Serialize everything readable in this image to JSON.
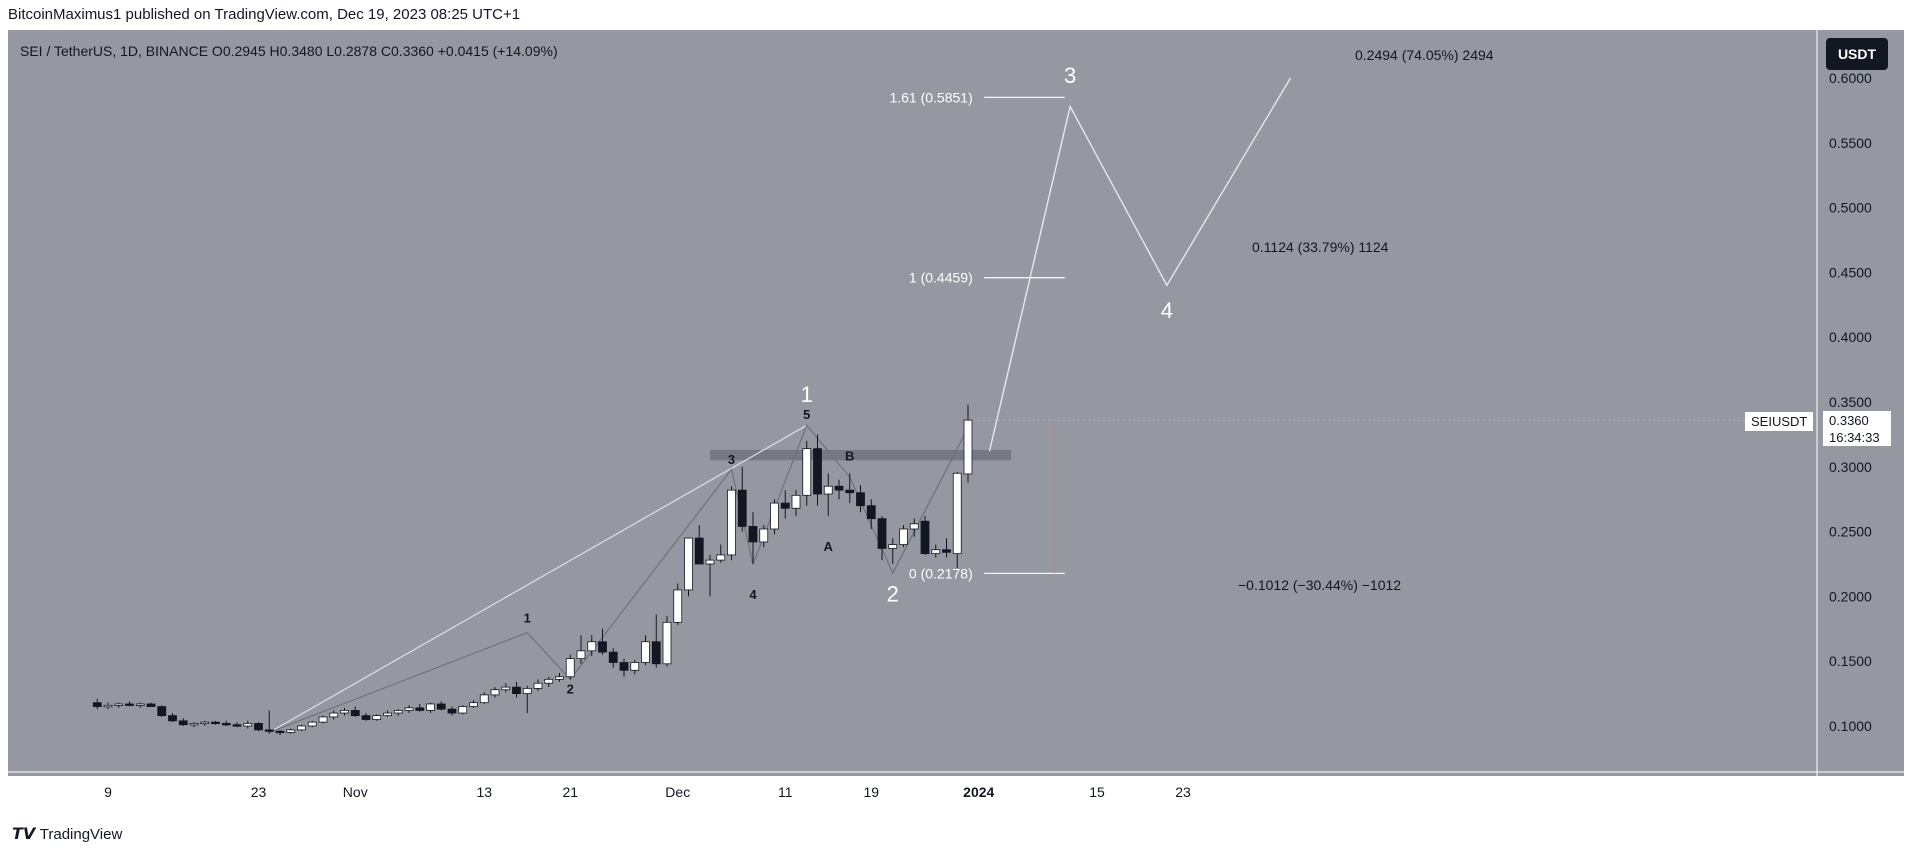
{
  "publisher": "BitcoinMaximus1 published on TradingView.com, Dec 19, 2023 08:25 UTC+1",
  "symbol": {
    "name": "SEI / TetherUS, 1D, BINANCE",
    "o_label": "O",
    "o": "0.2945",
    "h_label": "H",
    "h": "0.3480",
    "l_label": "L",
    "l": "0.2878",
    "c_label": "C",
    "c": "0.3360",
    "change": "+0.0415 (+14.09%)"
  },
  "currency_button": "USDT",
  "last_price_tag": {
    "symbol": "SEIUSDT",
    "price": "0.3360",
    "timer": "16:34:33"
  },
  "footer_brand": "TradingView",
  "colors": {
    "background": "#9598a1",
    "up": "#ffffff",
    "down": "#131722",
    "projection": "#e8e8e8",
    "zone": "#6c6f78"
  },
  "chart_data": {
    "type": "candlestick",
    "y_axis": {
      "range": [
        0.05,
        0.63
      ],
      "ticks": [
        "0.6000",
        "0.5500",
        "0.5000",
        "0.4500",
        "0.4000",
        "0.3500",
        "0.3000",
        "0.2500",
        "0.2000",
        "0.1500",
        "0.1000"
      ],
      "tick_values": [
        0.6,
        0.55,
        0.5,
        0.45,
        0.4,
        0.35,
        0.3,
        0.25,
        0.2,
        0.15,
        0.1
      ]
    },
    "x_axis": {
      "labels": [
        "9",
        "23",
        "Nov",
        "13",
        "21",
        "Dec",
        "11",
        "19",
        "2024",
        "15",
        "23"
      ],
      "label_day_index": [
        0,
        14,
        23,
        35,
        43,
        53,
        63,
        71,
        81,
        92,
        100
      ]
    },
    "candles": [
      [
        -1,
        0.118,
        0.121,
        0.113,
        0.115
      ],
      [
        0,
        0.115,
        0.118,
        0.113,
        0.116
      ],
      [
        1,
        0.116,
        0.118,
        0.114,
        0.117
      ],
      [
        2,
        0.117,
        0.119,
        0.115,
        0.116
      ],
      [
        3,
        0.116,
        0.118,
        0.114,
        0.117
      ],
      [
        4,
        0.117,
        0.118,
        0.115,
        0.115
      ],
      [
        5,
        0.115,
        0.116,
        0.107,
        0.108
      ],
      [
        6,
        0.108,
        0.11,
        0.103,
        0.104
      ],
      [
        7,
        0.104,
        0.106,
        0.1,
        0.101
      ],
      [
        8,
        0.101,
        0.103,
        0.099,
        0.102
      ],
      [
        9,
        0.102,
        0.104,
        0.1,
        0.103
      ],
      [
        10,
        0.103,
        0.104,
        0.101,
        0.102
      ],
      [
        11,
        0.102,
        0.104,
        0.1,
        0.101
      ],
      [
        12,
        0.101,
        0.103,
        0.099,
        0.1
      ],
      [
        13,
        0.1,
        0.104,
        0.098,
        0.102
      ],
      [
        14,
        0.102,
        0.103,
        0.096,
        0.097
      ],
      [
        15,
        0.097,
        0.112,
        0.094,
        0.096
      ],
      [
        16,
        0.096,
        0.097,
        0.093,
        0.095
      ],
      [
        17,
        0.095,
        0.098,
        0.094,
        0.097
      ],
      [
        18,
        0.097,
        0.101,
        0.096,
        0.1
      ],
      [
        19,
        0.1,
        0.104,
        0.099,
        0.103
      ],
      [
        20,
        0.103,
        0.108,
        0.102,
        0.107
      ],
      [
        21,
        0.107,
        0.112,
        0.105,
        0.11
      ],
      [
        22,
        0.11,
        0.114,
        0.108,
        0.112
      ],
      [
        23,
        0.112,
        0.115,
        0.107,
        0.108
      ],
      [
        24,
        0.108,
        0.11,
        0.104,
        0.105
      ],
      [
        25,
        0.105,
        0.109,
        0.104,
        0.108
      ],
      [
        26,
        0.108,
        0.112,
        0.107,
        0.11
      ],
      [
        27,
        0.11,
        0.113,
        0.108,
        0.112
      ],
      [
        28,
        0.112,
        0.116,
        0.11,
        0.114
      ],
      [
        29,
        0.114,
        0.117,
        0.111,
        0.112
      ],
      [
        30,
        0.112,
        0.118,
        0.11,
        0.117
      ],
      [
        31,
        0.117,
        0.119,
        0.112,
        0.113
      ],
      [
        32,
        0.113,
        0.115,
        0.108,
        0.11
      ],
      [
        33,
        0.11,
        0.116,
        0.109,
        0.115
      ],
      [
        34,
        0.115,
        0.12,
        0.114,
        0.118
      ]
    ],
    "candles_b": [
      [
        35,
        0.118,
        0.126,
        0.117,
        0.124
      ],
      [
        36,
        0.124,
        0.13,
        0.122,
        0.128
      ],
      [
        37,
        0.128,
        0.133,
        0.126,
        0.13
      ],
      [
        38,
        0.13,
        0.134,
        0.122,
        0.125
      ],
      [
        39,
        0.125,
        0.131,
        0.11,
        0.129
      ],
      [
        40,
        0.129,
        0.136,
        0.127,
        0.133
      ],
      [
        41,
        0.133,
        0.138,
        0.13,
        0.136
      ],
      [
        42,
        0.136,
        0.141,
        0.134,
        0.138
      ],
      [
        43,
        0.138,
        0.155,
        0.136,
        0.152
      ],
      [
        44,
        0.152,
        0.17,
        0.148,
        0.158
      ],
      [
        45,
        0.158,
        0.17,
        0.154,
        0.165
      ],
      [
        46,
        0.165,
        0.175,
        0.155,
        0.157
      ],
      [
        47,
        0.157,
        0.16,
        0.145,
        0.149
      ],
      [
        48,
        0.149,
        0.152,
        0.138,
        0.143
      ],
      [
        49,
        0.143,
        0.151,
        0.14,
        0.149
      ],
      [
        50,
        0.149,
        0.17,
        0.147,
        0.165
      ],
      [
        51,
        0.165,
        0.186,
        0.145,
        0.148
      ],
      [
        52,
        0.148,
        0.185,
        0.146,
        0.18
      ],
      [
        53,
        0.18,
        0.21,
        0.178,
        0.205
      ],
      [
        54,
        0.205,
        0.245,
        0.2,
        0.245
      ],
      [
        55,
        0.245,
        0.255,
        0.225,
        0.225
      ],
      [
        56,
        0.225,
        0.232,
        0.2,
        0.228
      ],
      [
        57,
        0.228,
        0.24,
        0.226,
        0.232
      ],
      [
        58,
        0.232,
        0.285,
        0.228,
        0.282
      ],
      [
        59,
        0.282,
        0.3,
        0.25,
        0.254
      ],
      [
        60,
        0.254,
        0.265,
        0.225,
        0.242
      ],
      [
        61,
        0.242,
        0.255,
        0.238,
        0.252
      ],
      [
        62,
        0.252,
        0.275,
        0.248,
        0.272
      ],
      [
        63,
        0.272,
        0.282,
        0.26,
        0.268
      ],
      [
        64,
        0.268,
        0.282,
        0.262,
        0.278
      ],
      [
        65,
        0.278,
        0.32,
        0.27,
        0.314
      ],
      [
        66,
        0.314,
        0.325,
        0.27,
        0.279
      ],
      [
        67,
        0.279,
        0.295,
        0.262,
        0.285
      ],
      [
        68,
        0.285,
        0.29,
        0.275,
        0.282
      ],
      [
        69,
        0.282,
        0.295,
        0.272,
        0.28
      ],
      [
        70,
        0.28,
        0.286,
        0.265,
        0.27
      ]
    ],
    "candles_c": [
      [
        71,
        0.27,
        0.275,
        0.252,
        0.26
      ],
      [
        72,
        0.26,
        0.262,
        0.228,
        0.237
      ],
      [
        73,
        0.237,
        0.245,
        0.225,
        0.24
      ],
      [
        74,
        0.24,
        0.255,
        0.238,
        0.252
      ],
      [
        75,
        0.252,
        0.26,
        0.246,
        0.256
      ],
      [
        76,
        0.258,
        0.262,
        0.232,
        0.233
      ],
      [
        77,
        0.233,
        0.24,
        0.23,
        0.236
      ],
      [
        78,
        0.236,
        0.245,
        0.23,
        0.234
      ],
      [
        79,
        0.233,
        0.296,
        0.222,
        0.295
      ],
      [
        80,
        0.2945,
        0.348,
        0.2878,
        0.336
      ]
    ],
    "fib_levels": [
      {
        "label": "1.61 (0.5851)",
        "value": 0.5851
      },
      {
        "label": "1 (0.4459)",
        "value": 0.4459
      },
      {
        "label": "0 (0.2178)",
        "value": 0.2178
      }
    ],
    "measurements": [
      {
        "label": "0.2494 (74.05%) 2494"
      },
      {
        "label": "0.1124 (33.79%) 1124"
      },
      {
        "label": "−0.1012 (−30.44%) −1012"
      }
    ],
    "wave_labels_major": [
      "1",
      "2",
      "3",
      "4"
    ],
    "wave_labels_minor": [
      "1",
      "2",
      "3",
      "4",
      "5",
      "A",
      "B"
    ],
    "resistance_zone": [
      0.305,
      0.313
    ],
    "projection_path": [
      [
        82,
        0.312
      ],
      [
        89.5,
        0.578
      ],
      [
        98.5,
        0.44
      ],
      [
        110,
        0.6
      ]
    ],
    "trend_line": [
      [
        15,
        0.095
      ],
      [
        65,
        0.332
      ]
    ]
  }
}
